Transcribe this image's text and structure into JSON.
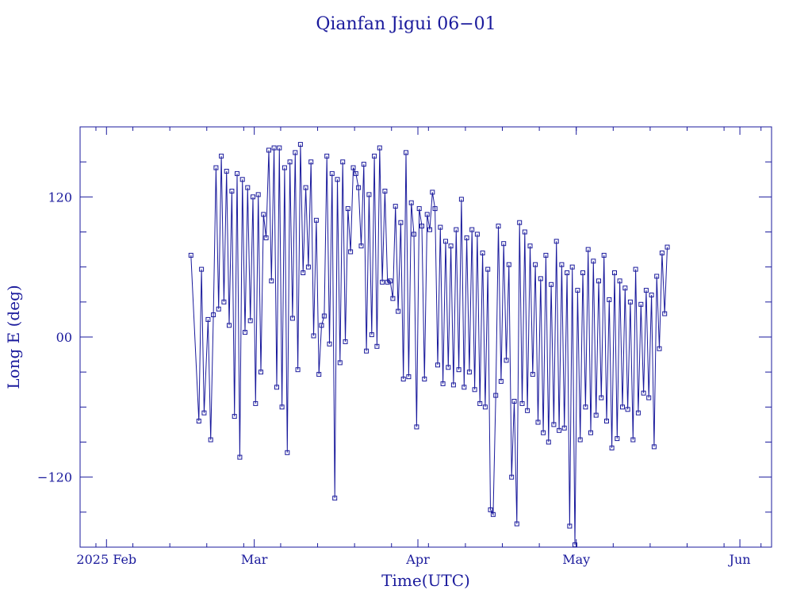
{
  "chart_data": {
    "type": "line",
    "title": "Qianfan Jigui 06−01",
    "xlabel": "Time(UTC)",
    "ylabel": "Long E (deg)",
    "x_unit": "date",
    "xlim": [
      "2025-01-27",
      "2025-06-07"
    ],
    "ylim": [
      -180,
      180
    ],
    "x_ticks": [
      {
        "date": "2025-02-01",
        "label": "2025 Feb"
      },
      {
        "date": "2025-03-01",
        "label": "Mar"
      },
      {
        "date": "2025-04-01",
        "label": "Apr"
      },
      {
        "date": "2025-05-01",
        "label": "May"
      },
      {
        "date": "2025-06-01",
        "label": "Jun"
      }
    ],
    "y_ticks": [
      {
        "value": -120,
        "label": "−120"
      },
      {
        "value": 0,
        "label": "00"
      },
      {
        "value": 120,
        "label": "120"
      }
    ],
    "grid": false,
    "legend": "none",
    "color": "#1a1a9c",
    "series": [
      {
        "points": [
          [
            "2025-02-17T00:00",
            70
          ],
          [
            "2025-02-18T12:00",
            -72
          ],
          [
            "2025-02-19T00:00",
            58
          ],
          [
            "2025-02-19T12:00",
            -65
          ],
          [
            "2025-02-20T06:00",
            15
          ],
          [
            "2025-02-20T18:00",
            -88
          ],
          [
            "2025-02-21T06:00",
            19
          ],
          [
            "2025-02-21T18:00",
            145
          ],
          [
            "2025-02-22T06:00",
            24
          ],
          [
            "2025-02-22T18:00",
            155
          ],
          [
            "2025-02-23T06:00",
            30
          ],
          [
            "2025-02-23T18:00",
            142
          ],
          [
            "2025-02-24T06:00",
            10
          ],
          [
            "2025-02-24T18:00",
            125
          ],
          [
            "2025-02-25T06:00",
            -68
          ],
          [
            "2025-02-25T18:00",
            140
          ],
          [
            "2025-02-26T06:00",
            -103
          ],
          [
            "2025-02-26T18:00",
            135
          ],
          [
            "2025-02-27T06:00",
            4
          ],
          [
            "2025-02-27T18:00",
            128
          ],
          [
            "2025-02-28T06:00",
            14
          ],
          [
            "2025-02-28T18:00",
            120
          ],
          [
            "2025-03-01T06:00",
            -57
          ],
          [
            "2025-03-01T18:00",
            122
          ],
          [
            "2025-03-02T06:00",
            -30
          ],
          [
            "2025-03-02T18:00",
            105
          ],
          [
            "2025-03-03T06:00",
            85
          ],
          [
            "2025-03-03T18:00",
            160
          ],
          [
            "2025-03-04T06:00",
            48
          ],
          [
            "2025-03-04T18:00",
            162
          ],
          [
            "2025-03-05T06:00",
            -43
          ],
          [
            "2025-03-05T18:00",
            162
          ],
          [
            "2025-03-06T06:00",
            -60
          ],
          [
            "2025-03-06T18:00",
            145
          ],
          [
            "2025-03-07T06:00",
            -99
          ],
          [
            "2025-03-07T18:00",
            150
          ],
          [
            "2025-03-08T06:00",
            16
          ],
          [
            "2025-03-08T18:00",
            158
          ],
          [
            "2025-03-09T06:00",
            -28
          ],
          [
            "2025-03-09T18:00",
            165
          ],
          [
            "2025-03-10T06:00",
            55
          ],
          [
            "2025-03-10T18:00",
            128
          ],
          [
            "2025-03-11T06:00",
            60
          ],
          [
            "2025-03-11T18:00",
            150
          ],
          [
            "2025-03-12T06:00",
            1
          ],
          [
            "2025-03-12T18:00",
            100
          ],
          [
            "2025-03-13T06:00",
            -32
          ],
          [
            "2025-03-13T18:00",
            10
          ],
          [
            "2025-03-14T06:00",
            18
          ],
          [
            "2025-03-14T18:00",
            155
          ],
          [
            "2025-03-15T06:00",
            -6
          ],
          [
            "2025-03-15T18:00",
            140
          ],
          [
            "2025-03-16T06:00",
            -138
          ],
          [
            "2025-03-16T18:00",
            135
          ],
          [
            "2025-03-17T06:00",
            -22
          ],
          [
            "2025-03-17T18:00",
            150
          ],
          [
            "2025-03-18T06:00",
            -4
          ],
          [
            "2025-03-18T18:00",
            110
          ],
          [
            "2025-03-19T06:00",
            73
          ],
          [
            "2025-03-19T18:00",
            145
          ],
          [
            "2025-03-20T06:00",
            140
          ],
          [
            "2025-03-20T18:00",
            128
          ],
          [
            "2025-03-21T06:00",
            78
          ],
          [
            "2025-03-21T18:00",
            148
          ],
          [
            "2025-03-22T06:00",
            -12
          ],
          [
            "2025-03-22T18:00",
            122
          ],
          [
            "2025-03-23T06:00",
            2
          ],
          [
            "2025-03-23T18:00",
            155
          ],
          [
            "2025-03-24T06:00",
            -8
          ],
          [
            "2025-03-24T18:00",
            162
          ],
          [
            "2025-03-25T06:00",
            47
          ],
          [
            "2025-03-25T18:00",
            125
          ],
          [
            "2025-03-26T06:00",
            47
          ],
          [
            "2025-03-26T18:00",
            48
          ],
          [
            "2025-03-27T06:00",
            33
          ],
          [
            "2025-03-27T18:00",
            112
          ],
          [
            "2025-03-28T06:00",
            22
          ],
          [
            "2025-03-28T18:00",
            98
          ],
          [
            "2025-03-29T06:00",
            -36
          ],
          [
            "2025-03-29T18:00",
            158
          ],
          [
            "2025-03-30T06:00",
            -34
          ],
          [
            "2025-03-30T18:00",
            115
          ],
          [
            "2025-03-31T06:00",
            88
          ],
          [
            "2025-03-31T18:00",
            -77
          ],
          [
            "2025-04-01T06:00",
            110
          ],
          [
            "2025-04-01T18:00",
            95
          ],
          [
            "2025-04-02T06:00",
            -36
          ],
          [
            "2025-04-02T18:00",
            105
          ],
          [
            "2025-04-03T06:00",
            92
          ],
          [
            "2025-04-03T18:00",
            124
          ],
          [
            "2025-04-04T06:00",
            110
          ],
          [
            "2025-04-04T18:00",
            -24
          ],
          [
            "2025-04-05T06:00",
            94
          ],
          [
            "2025-04-05T18:00",
            -40
          ],
          [
            "2025-04-06T06:00",
            82
          ],
          [
            "2025-04-06T18:00",
            -26
          ],
          [
            "2025-04-07T06:00",
            78
          ],
          [
            "2025-04-07T18:00",
            -41
          ],
          [
            "2025-04-08T06:00",
            92
          ],
          [
            "2025-04-08T18:00",
            -28
          ],
          [
            "2025-04-09T06:00",
            118
          ],
          [
            "2025-04-09T18:00",
            -43
          ],
          [
            "2025-04-10T06:00",
            85
          ],
          [
            "2025-04-10T18:00",
            -30
          ],
          [
            "2025-04-11T06:00",
            92
          ],
          [
            "2025-04-11T18:00",
            -45
          ],
          [
            "2025-04-12T06:00",
            88
          ],
          [
            "2025-04-12T18:00",
            -57
          ],
          [
            "2025-04-13T06:00",
            72
          ],
          [
            "2025-04-13T18:00",
            -60
          ],
          [
            "2025-04-14T06:00",
            58
          ],
          [
            "2025-04-14T18:00",
            -148
          ],
          [
            "2025-04-15T06:00",
            -152
          ],
          [
            "2025-04-15T18:00",
            -50
          ],
          [
            "2025-04-16T06:00",
            95
          ],
          [
            "2025-04-16T18:00",
            -38
          ],
          [
            "2025-04-17T06:00",
            80
          ],
          [
            "2025-04-17T18:00",
            -20
          ],
          [
            "2025-04-18T06:00",
            62
          ],
          [
            "2025-04-18T18:00",
            -120
          ],
          [
            "2025-04-19T06:00",
            -55
          ],
          [
            "2025-04-19T18:00",
            -160
          ],
          [
            "2025-04-20T06:00",
            98
          ],
          [
            "2025-04-20T18:00",
            -57
          ],
          [
            "2025-04-21T06:00",
            90
          ],
          [
            "2025-04-21T18:00",
            -63
          ],
          [
            "2025-04-22T06:00",
            78
          ],
          [
            "2025-04-22T18:00",
            -32
          ],
          [
            "2025-04-23T06:00",
            62
          ],
          [
            "2025-04-23T18:00",
            -73
          ],
          [
            "2025-04-24T06:00",
            50
          ],
          [
            "2025-04-24T18:00",
            -82
          ],
          [
            "2025-04-25T06:00",
            70
          ],
          [
            "2025-04-25T18:00",
            -90
          ],
          [
            "2025-04-26T06:00",
            45
          ],
          [
            "2025-04-26T18:00",
            -75
          ],
          [
            "2025-04-27T06:00",
            82
          ],
          [
            "2025-04-27T18:00",
            -80
          ],
          [
            "2025-04-28T06:00",
            62
          ],
          [
            "2025-04-28T18:00",
            -78
          ],
          [
            "2025-04-29T06:00",
            55
          ],
          [
            "2025-04-29T18:00",
            -162
          ],
          [
            "2025-04-30T06:00",
            60
          ],
          [
            "2025-04-30T18:00",
            -178
          ],
          [
            "2025-05-01T06:00",
            40
          ],
          [
            "2025-05-01T18:00",
            -88
          ],
          [
            "2025-05-02T06:00",
            55
          ],
          [
            "2025-05-02T18:00",
            -60
          ],
          [
            "2025-05-03T06:00",
            75
          ],
          [
            "2025-05-03T18:00",
            -82
          ],
          [
            "2025-05-04T06:00",
            65
          ],
          [
            "2025-05-04T18:00",
            -67
          ],
          [
            "2025-05-05T06:00",
            48
          ],
          [
            "2025-05-05T18:00",
            -52
          ],
          [
            "2025-05-06T06:00",
            70
          ],
          [
            "2025-05-06T18:00",
            -72
          ],
          [
            "2025-05-07T06:00",
            32
          ],
          [
            "2025-05-07T18:00",
            -95
          ],
          [
            "2025-05-08T06:00",
            55
          ],
          [
            "2025-05-08T18:00",
            -87
          ],
          [
            "2025-05-09T06:00",
            48
          ],
          [
            "2025-05-09T18:00",
            -60
          ],
          [
            "2025-05-10T06:00",
            42
          ],
          [
            "2025-05-10T18:00",
            -62
          ],
          [
            "2025-05-11T06:00",
            30
          ],
          [
            "2025-05-11T18:00",
            -88
          ],
          [
            "2025-05-12T06:00",
            58
          ],
          [
            "2025-05-12T18:00",
            -65
          ],
          [
            "2025-05-13T06:00",
            28
          ],
          [
            "2025-05-13T18:00",
            -48
          ],
          [
            "2025-05-14T06:00",
            40
          ],
          [
            "2025-05-14T18:00",
            -52
          ],
          [
            "2025-05-15T06:00",
            36
          ],
          [
            "2025-05-15T18:00",
            -94
          ],
          [
            "2025-05-16T06:00",
            52
          ],
          [
            "2025-05-16T18:00",
            -10
          ],
          [
            "2025-05-17T06:00",
            72
          ],
          [
            "2025-05-17T18:00",
            20
          ],
          [
            "2025-05-18T06:00",
            77
          ]
        ]
      }
    ]
  }
}
